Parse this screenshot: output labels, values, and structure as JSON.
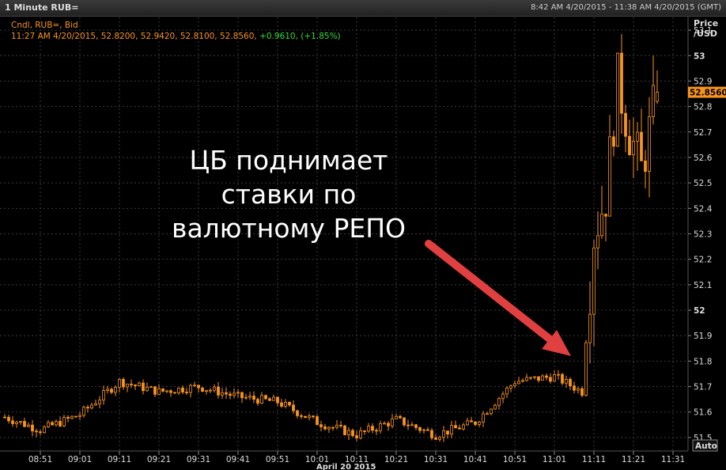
{
  "window": {
    "title": "1 Minute RUB=",
    "time_range": "8:42 AM 4/20/2015 - 11:38 AM 4/20/2015 (GMT)"
  },
  "legend": {
    "line1": "Cndl, RUB=, Bid",
    "line2_prefix": "11:27 AM 4/20/2015, 52.8200, 52.9420, 52.8100, 52.8560, ",
    "line2_change": "+0.9610, (+1.85%)"
  },
  "price_axis": {
    "title_line1": "Price",
    "title_line2": "/USD",
    "last_price": "52.8560",
    "auto_label": "Auto"
  },
  "annotation": {
    "line1": "ЦБ поднимает",
    "line2": "ставки по",
    "line3": "валютному РЕПО"
  },
  "colors": {
    "background": "#000000",
    "candle": "#f7941d",
    "grid": "#3a3a3a",
    "arrow": "#e04040",
    "change_positive": "#33dd33"
  },
  "chart_data": {
    "type": "candlestick",
    "instrument": "RUB=",
    "interval": "1 Minute",
    "ylim": [
      51.45,
      53.15
    ],
    "yticks": [
      "51.5",
      "51.6",
      "51.7",
      "51.8",
      "51.9",
      "52",
      "52.1",
      "52.2",
      "52.3",
      "52.4",
      "52.5",
      "52.6",
      "52.7",
      "52.8",
      "52.9",
      "53",
      "53.1"
    ],
    "xticks": [
      "08:51",
      "09:01",
      "09:11",
      "09:21",
      "09:31",
      "09:41",
      "09:51",
      "10:01",
      "10:11",
      "10:21",
      "10:31",
      "10:41",
      "10:51",
      "11:01",
      "11:11",
      "11:21",
      "11:31"
    ],
    "date_label": "April 20 2015",
    "price_checkpoints": [
      {
        "time": "08:42",
        "value": 51.58
      },
      {
        "time": "08:51",
        "value": 51.53
      },
      {
        "time": "09:01",
        "value": 51.59
      },
      {
        "time": "09:11",
        "value": 51.72
      },
      {
        "time": "09:21",
        "value": 51.68
      },
      {
        "time": "09:31",
        "value": 51.7
      },
      {
        "time": "09:41",
        "value": 51.66
      },
      {
        "time": "09:51",
        "value": 51.64
      },
      {
        "time": "10:01",
        "value": 51.56
      },
      {
        "time": "10:11",
        "value": 51.51
      },
      {
        "time": "10:21",
        "value": 51.57
      },
      {
        "time": "10:31",
        "value": 51.51
      },
      {
        "time": "10:41",
        "value": 51.56
      },
      {
        "time": "10:51",
        "value": 51.72
      },
      {
        "time": "11:01",
        "value": 51.74
      },
      {
        "time": "11:08",
        "value": 51.68
      },
      {
        "time": "11:11",
        "value": 52.3
      },
      {
        "time": "11:14",
        "value": 52.45
      },
      {
        "time": "11:17",
        "value": 52.9
      },
      {
        "time": "11:20",
        "value": 52.7
      },
      {
        "time": "11:23",
        "value": 52.55
      },
      {
        "time": "11:27",
        "value": 52.856
      }
    ],
    "last_candle": {
      "time": "11:27",
      "open": 52.82,
      "high": 52.942,
      "low": 52.81,
      "close": 52.856
    }
  }
}
